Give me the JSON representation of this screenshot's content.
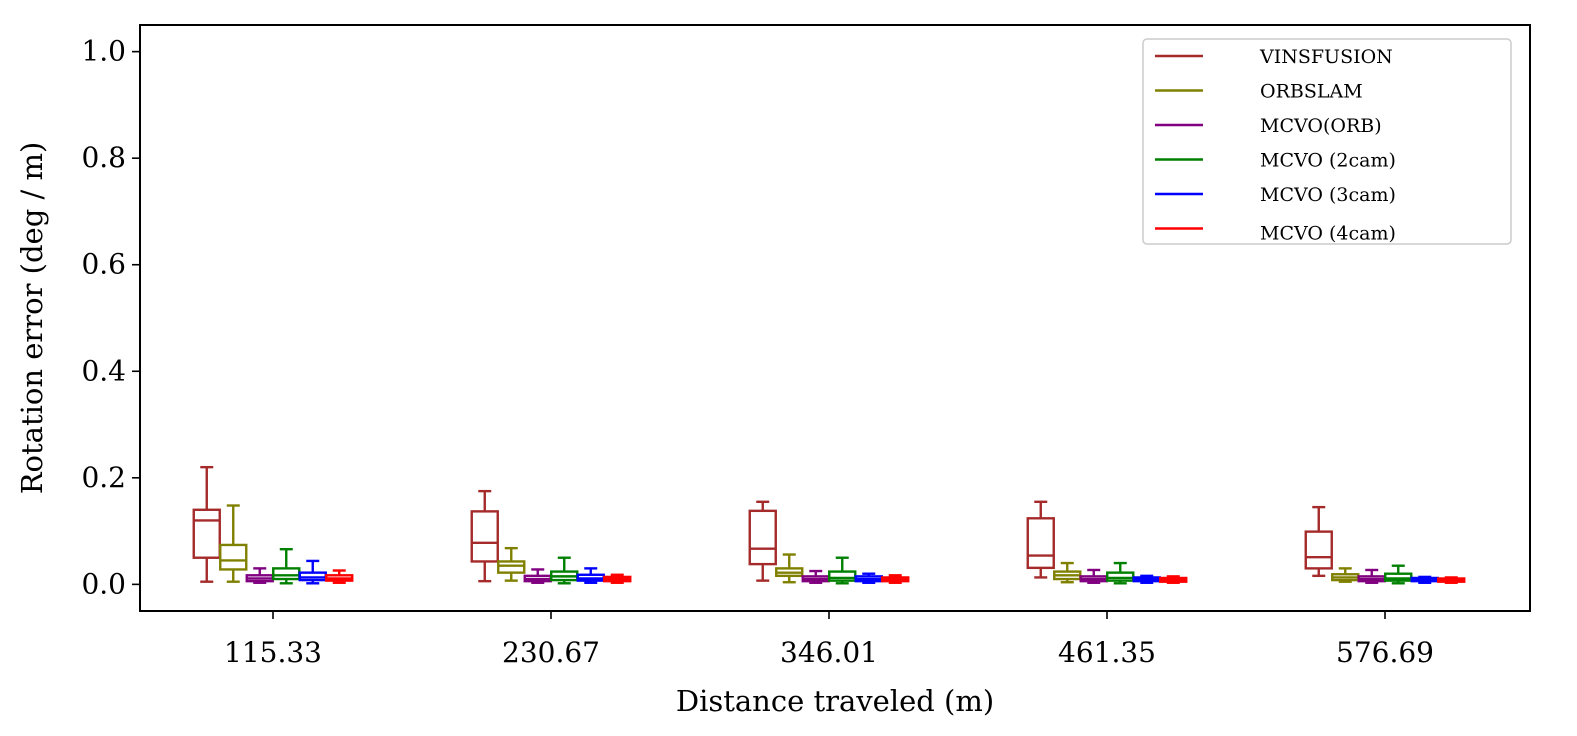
{
  "chart_data": {
    "type": "boxplot",
    "xlabel": "Distance traveled (m)",
    "ylabel": "Rotation error (deg / m)",
    "ylim": [
      -0.05,
      1.05
    ],
    "yticks": [
      "0.0",
      "0.2",
      "0.4",
      "0.6",
      "0.8",
      "1.0"
    ],
    "categories": [
      "115.33",
      "230.67",
      "346.01",
      "461.35",
      "576.69"
    ],
    "legend_position": "top-right",
    "series": [
      {
        "name": "VINSFUSION",
        "color": "#a52a2a",
        "boxes": [
          {
            "whislo": 0.005,
            "q1": 0.05,
            "med": 0.12,
            "q3": 0.14,
            "whishi": 0.22
          },
          {
            "whislo": 0.006,
            "q1": 0.043,
            "med": 0.078,
            "q3": 0.137,
            "whishi": 0.175
          },
          {
            "whislo": 0.007,
            "q1": 0.038,
            "med": 0.067,
            "q3": 0.138,
            "whishi": 0.155
          },
          {
            "whislo": 0.013,
            "q1": 0.031,
            "med": 0.054,
            "q3": 0.124,
            "whishi": 0.155
          },
          {
            "whislo": 0.016,
            "q1": 0.03,
            "med": 0.051,
            "q3": 0.099,
            "whishi": 0.145
          }
        ]
      },
      {
        "name": "ORBSLAM",
        "color": "#808000",
        "boxes": [
          {
            "whislo": 0.005,
            "q1": 0.028,
            "med": 0.045,
            "q3": 0.074,
            "whishi": 0.148
          },
          {
            "whislo": 0.007,
            "q1": 0.022,
            "med": 0.035,
            "q3": 0.043,
            "whishi": 0.068
          },
          {
            "whislo": 0.004,
            "q1": 0.016,
            "med": 0.022,
            "q3": 0.03,
            "whishi": 0.056
          },
          {
            "whislo": 0.004,
            "q1": 0.01,
            "med": 0.017,
            "q3": 0.024,
            "whishi": 0.04
          },
          {
            "whislo": 0.005,
            "q1": 0.008,
            "med": 0.013,
            "q3": 0.019,
            "whishi": 0.03
          }
        ]
      },
      {
        "name": "MCVO(ORB)",
        "color": "#800080",
        "boxes": [
          {
            "whislo": 0.003,
            "q1": 0.006,
            "med": 0.011,
            "q3": 0.017,
            "whishi": 0.03
          },
          {
            "whislo": 0.003,
            "q1": 0.006,
            "med": 0.01,
            "q3": 0.016,
            "whishi": 0.028
          },
          {
            "whislo": 0.003,
            "q1": 0.006,
            "med": 0.01,
            "q3": 0.015,
            "whishi": 0.025
          },
          {
            "whislo": 0.003,
            "q1": 0.006,
            "med": 0.01,
            "q3": 0.015,
            "whishi": 0.027
          },
          {
            "whislo": 0.003,
            "q1": 0.006,
            "med": 0.01,
            "q3": 0.015,
            "whishi": 0.027
          }
        ]
      },
      {
        "name": "MCVO (2cam)",
        "color": "#008000",
        "boxes": [
          {
            "whislo": 0.002,
            "q1": 0.01,
            "med": 0.017,
            "q3": 0.03,
            "whishi": 0.066
          },
          {
            "whislo": 0.002,
            "q1": 0.008,
            "med": 0.015,
            "q3": 0.024,
            "whishi": 0.05
          },
          {
            "whislo": 0.002,
            "q1": 0.007,
            "med": 0.012,
            "q3": 0.024,
            "whishi": 0.05
          },
          {
            "whislo": 0.002,
            "q1": 0.007,
            "med": 0.012,
            "q3": 0.022,
            "whishi": 0.04
          },
          {
            "whislo": 0.002,
            "q1": 0.007,
            "med": 0.011,
            "q3": 0.02,
            "whishi": 0.035
          }
        ]
      },
      {
        "name": "MCVO (3cam)",
        "color": "#0000ff",
        "boxes": [
          {
            "whislo": 0.002,
            "q1": 0.008,
            "med": 0.013,
            "q3": 0.022,
            "whishi": 0.044
          },
          {
            "whislo": 0.003,
            "q1": 0.007,
            "med": 0.011,
            "q3": 0.018,
            "whishi": 0.03
          },
          {
            "whislo": 0.003,
            "q1": 0.006,
            "med": 0.01,
            "q3": 0.015,
            "whishi": 0.02
          },
          {
            "whislo": 0.003,
            "q1": 0.006,
            "med": 0.009,
            "q3": 0.013,
            "whishi": 0.016
          },
          {
            "whislo": 0.003,
            "q1": 0.006,
            "med": 0.008,
            "q3": 0.012,
            "whishi": 0.014
          }
        ]
      },
      {
        "name": "MCVO (4cam)",
        "color": "#ff0000",
        "boxes": [
          {
            "whislo": 0.003,
            "q1": 0.007,
            "med": 0.011,
            "q3": 0.017,
            "whishi": 0.026
          },
          {
            "whislo": 0.003,
            "q1": 0.006,
            "med": 0.01,
            "q3": 0.014,
            "whishi": 0.018
          },
          {
            "whislo": 0.003,
            "q1": 0.006,
            "med": 0.009,
            "q3": 0.013,
            "whishi": 0.017
          },
          {
            "whislo": 0.003,
            "q1": 0.005,
            "med": 0.009,
            "q3": 0.012,
            "whishi": 0.015
          },
          {
            "whislo": 0.003,
            "q1": 0.005,
            "med": 0.008,
            "q3": 0.011,
            "whishi": 0.013
          }
        ]
      }
    ]
  }
}
